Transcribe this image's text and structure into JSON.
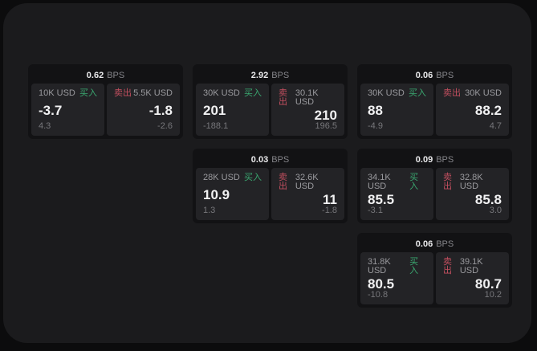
{
  "page": {
    "bg": "#0c0c0d",
    "panel_bg": "#1b1b1d"
  },
  "colors": {
    "card_bg": "#121214",
    "tile_bg": "#232326",
    "buy_green": "#3aa870",
    "sell_red": "#c34f5f",
    "label_gray": "#9a9a9e",
    "dim_gray": "#77777b",
    "value_white": "#f1f1f2"
  },
  "labels": {
    "bps": "BPS",
    "buy": "买入",
    "sell": "卖出"
  },
  "cards": [
    {
      "bps": "0.62",
      "buy": {
        "amount": "10K USD",
        "price": "-3.7",
        "sub": "4.3"
      },
      "sell": {
        "amount": "5.5K USD",
        "price": "-1.8",
        "sub": "-2.6"
      }
    },
    {
      "bps": "2.92",
      "buy": {
        "amount": "30K USD",
        "price": "201",
        "sub": "-188.1"
      },
      "sell": {
        "amount": "30.1K USD",
        "price": "210",
        "sub": "196.5"
      }
    },
    {
      "bps": "0.06",
      "buy": {
        "amount": "30K USD",
        "price": "88",
        "sub": "-4.9"
      },
      "sell": {
        "amount": "30K USD",
        "price": "88.2",
        "sub": "4.7"
      }
    },
    {
      "bps": "0.03",
      "buy": {
        "amount": "28K USD",
        "price": "10.9",
        "sub": "1.3"
      },
      "sell": {
        "amount": "32.6K USD",
        "price": "11",
        "sub": "-1.8"
      }
    },
    {
      "bps": "0.09",
      "buy": {
        "amount": "34.1K USD",
        "price": "85.5",
        "sub": "-3.1"
      },
      "sell": {
        "amount": "32.8K USD",
        "price": "85.8",
        "sub": "3.0"
      }
    },
    {
      "bps": "0.06",
      "buy": {
        "amount": "31.8K USD",
        "price": "80.5",
        "sub": "-10.8"
      },
      "sell": {
        "amount": "39.1K USD",
        "price": "80.7",
        "sub": "10.2"
      }
    }
  ]
}
